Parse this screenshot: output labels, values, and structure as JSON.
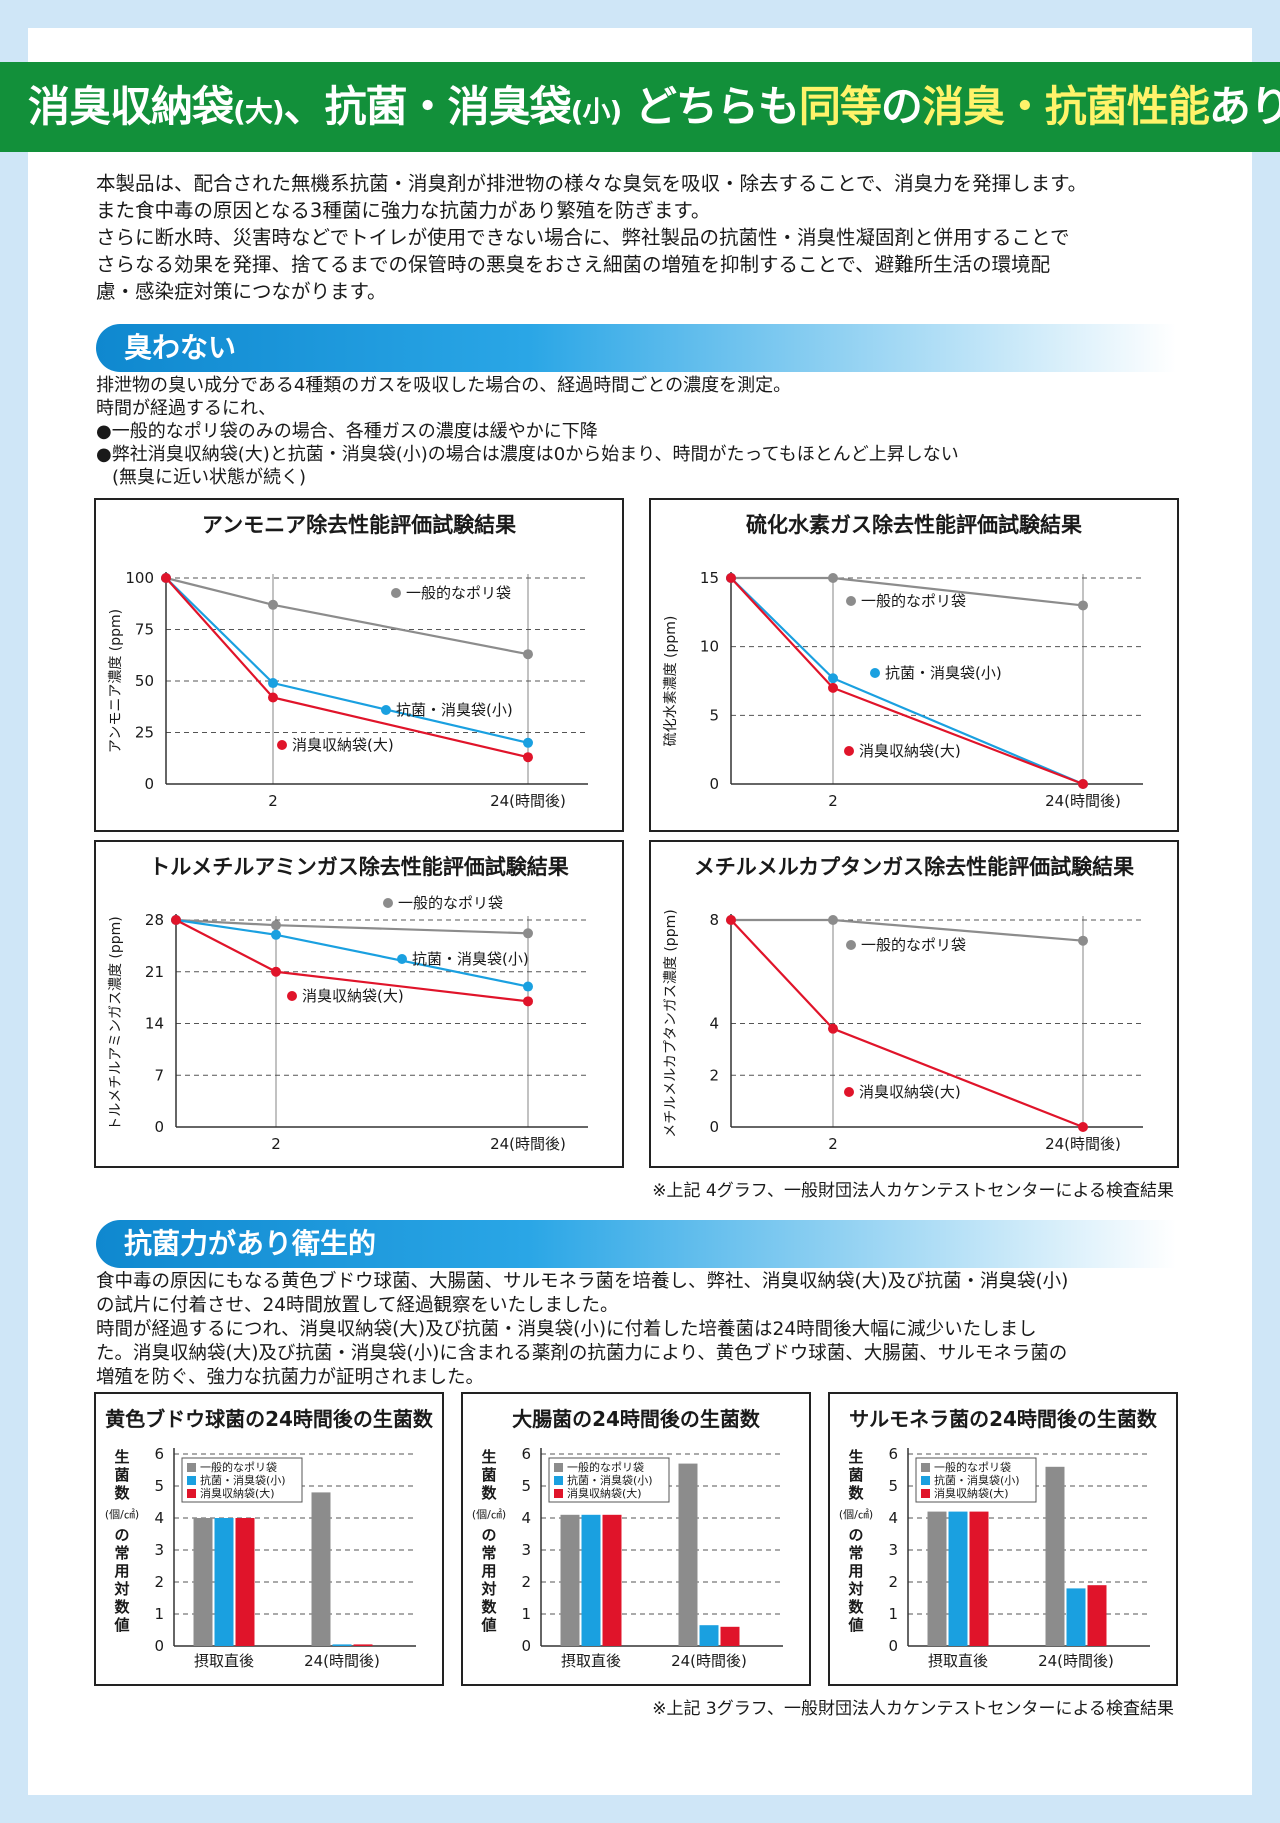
{
  "banner": {
    "part1": "消臭収納袋",
    "part2": "(大)",
    "part3": "、抗菌・消臭袋",
    "part4": "(小)",
    "part5": " どちらも",
    "part6": "同等",
    "part7": "の",
    "part8": "消臭・抗菌性能",
    "part9": "あり!"
  },
  "intro": [
    "本製品は、配合された無機系抗菌・消臭剤が排泄物の様々な臭気を吸収・除去することで、消臭力を発揮します。",
    "また食中毒の原因となる3種菌に強力な抗菌力があり繁殖を防ぎます。",
    "さらに断水時、災害時などでトイレが使用できない場合に、弊社製品の抗菌性・消臭性凝固剤と併用することで",
    "さらなる効果を発揮、捨てるまでの保管時の悪臭をおさえ細菌の増殖を抑制することで、避難所生活の環境配",
    "慮・感染症対策につながります。"
  ],
  "section1": {
    "title": "臭わない",
    "lines": [
      "排泄物の臭い成分である4種類のガスを吸収した場合の、経過時間ごとの濃度を測定。",
      "時間が経過するにれ、",
      "●一般的なポリ袋のみの場合、各種ガスの濃度は緩やかに下降",
      "●弊社消臭収納袋(大)と抗菌・消臭袋(小)の場合は濃度は0から始まり、時間がたってもほとんど上昇しない",
      "(無臭に近い状態が続く)"
    ],
    "note": "※上記 4グラフ、一般財団法人カケンテストセンターによる検査結果"
  },
  "section2": {
    "title": "抗菌力があり衛生的",
    "lines": [
      "食中毒の原因にもなる黄色ブドウ球菌、大腸菌、サルモネラ菌を培養し、弊社、消臭収納袋(大)及び抗菌・消臭袋(小)",
      "の試片に付着させ、24時間放置して経過観察をいたしました。",
      "時間が経過するにつれ、消臭収納袋(大)及び抗菌・消臭袋(小)に付着した培養菌は24時間後大幅に減少いたしまし",
      "た。消臭収納袋(大)及び抗菌・消臭袋(小)に含まれる薬剤の抗菌力により、黄色ブドウ球菌、大腸菌、サルモネラ菌の",
      "増殖を防ぐ、強力な抗菌力が証明されました。"
    ],
    "note": "※上記 3グラフ、一般財団法人カケンテストセンターによる検査結果"
  },
  "colors": {
    "gray": "#8c8c8c",
    "blue": "#1aa0e0",
    "red": "#e0142a"
  },
  "chart_data": [
    {
      "type": "line",
      "title": "アンモニア除去性能評価試験結果",
      "ylabel": "アンモニア濃度 (ppm)",
      "x": [
        "",
        "2",
        "24(時間後)"
      ],
      "yticks": [
        0,
        25,
        50,
        75,
        100
      ],
      "ylim": [
        0,
        100
      ],
      "series": [
        {
          "name": "一般的なポリ袋",
          "color": "gray",
          "values": [
            100,
            87,
            63
          ]
        },
        {
          "name": "抗菌・消臭袋(小)",
          "color": "blue",
          "values": [
            100,
            49,
            20
          ]
        },
        {
          "name": "消臭収納袋(大)",
          "color": "red",
          "values": [
            100,
            42,
            13
          ]
        }
      ]
    },
    {
      "type": "line",
      "title": "硫化水素ガス除去性能評価試験結果",
      "ylabel": "硫化水素濃度 (ppm)",
      "x": [
        "",
        "2",
        "24(時間後)"
      ],
      "yticks": [
        0,
        5,
        10,
        15
      ],
      "ylim": [
        0,
        15
      ],
      "series": [
        {
          "name": "一般的なポリ袋",
          "color": "gray",
          "values": [
            15,
            15,
            13
          ]
        },
        {
          "name": "抗菌・消臭袋(小)",
          "color": "blue",
          "values": [
            15,
            7.7,
            0
          ]
        },
        {
          "name": "消臭収納袋(大)",
          "color": "red",
          "values": [
            15,
            7,
            0
          ]
        }
      ]
    },
    {
      "type": "line",
      "title": "トルメチルアミンガス除去性能評価試験結果",
      "ylabel": "トルメチルアミンガス濃度 (ppm)",
      "x": [
        "",
        "2",
        "24(時間後)"
      ],
      "yticks": [
        0,
        7,
        14,
        21,
        28
      ],
      "ylim": [
        0,
        28
      ],
      "series": [
        {
          "name": "一般的なポリ袋",
          "color": "gray",
          "values": [
            28,
            27.3,
            26.2
          ]
        },
        {
          "name": "抗菌・消臭袋(小)",
          "color": "blue",
          "values": [
            28,
            26,
            19
          ]
        },
        {
          "name": "消臭収納袋(大)",
          "color": "red",
          "values": [
            28,
            21,
            17
          ]
        }
      ]
    },
    {
      "type": "line",
      "title": "メチルメルカプタンガス除去性能評価試験結果",
      "ylabel": "メチルメルカプタンガス濃度 (ppm)",
      "x": [
        "",
        "2",
        "24(時間後)"
      ],
      "yticks": [
        0,
        2,
        4,
        8
      ],
      "ylim": [
        0,
        8
      ],
      "series": [
        {
          "name": "一般的なポリ袋",
          "color": "gray",
          "values": [
            8,
            8,
            7.2
          ]
        },
        {
          "name": "消臭収納袋(大)",
          "color": "red",
          "values": [
            8,
            3.8,
            0
          ]
        }
      ]
    },
    {
      "type": "bar",
      "title": "黄色ブドウ球菌の24時間後の生菌数",
      "ylabel": "生菌数の常用対数値",
      "yunit": "(個/㎠)",
      "categories": [
        "摂取直後",
        "24(時間後)"
      ],
      "yticks": [
        0,
        1,
        2,
        3,
        4,
        5,
        6
      ],
      "ylim": [
        0,
        6
      ],
      "series": [
        {
          "name": "一般的なポリ袋",
          "color": "gray",
          "values": [
            4.0,
            4.8
          ]
        },
        {
          "name": "抗菌・消臭袋(小)",
          "color": "blue",
          "values": [
            4.0,
            0.05
          ]
        },
        {
          "name": "消臭収納袋(大)",
          "color": "red",
          "values": [
            4.0,
            0.05
          ]
        }
      ]
    },
    {
      "type": "bar",
      "title": "大腸菌の24時間後の生菌数",
      "ylabel": "生菌数の常用対数値",
      "yunit": "(個/㎠)",
      "categories": [
        "摂取直後",
        "24(時間後)"
      ],
      "yticks": [
        0,
        1,
        2,
        3,
        4,
        5,
        6
      ],
      "ylim": [
        0,
        6
      ],
      "series": [
        {
          "name": "一般的なポリ袋",
          "color": "gray",
          "values": [
            4.1,
            5.7
          ]
        },
        {
          "name": "抗菌・消臭袋(小)",
          "color": "blue",
          "values": [
            4.1,
            0.65
          ]
        },
        {
          "name": "消臭収納袋(大)",
          "color": "red",
          "values": [
            4.1,
            0.6
          ]
        }
      ]
    },
    {
      "type": "bar",
      "title": "サルモネラ菌の24時間後の生菌数",
      "ylabel": "生菌数の常用対数値",
      "yunit": "(個/㎠)",
      "categories": [
        "摂取直後",
        "24(時間後)"
      ],
      "yticks": [
        0,
        1,
        2,
        3,
        4,
        5,
        6
      ],
      "ylim": [
        0,
        6
      ],
      "series": [
        {
          "name": "一般的なポリ袋",
          "color": "gray",
          "values": [
            4.2,
            5.6
          ]
        },
        {
          "name": "抗菌・消臭袋(小)",
          "color": "blue",
          "values": [
            4.2,
            1.8
          ]
        },
        {
          "name": "消臭収納袋(大)",
          "color": "red",
          "values": [
            4.2,
            1.9
          ]
        }
      ]
    }
  ]
}
